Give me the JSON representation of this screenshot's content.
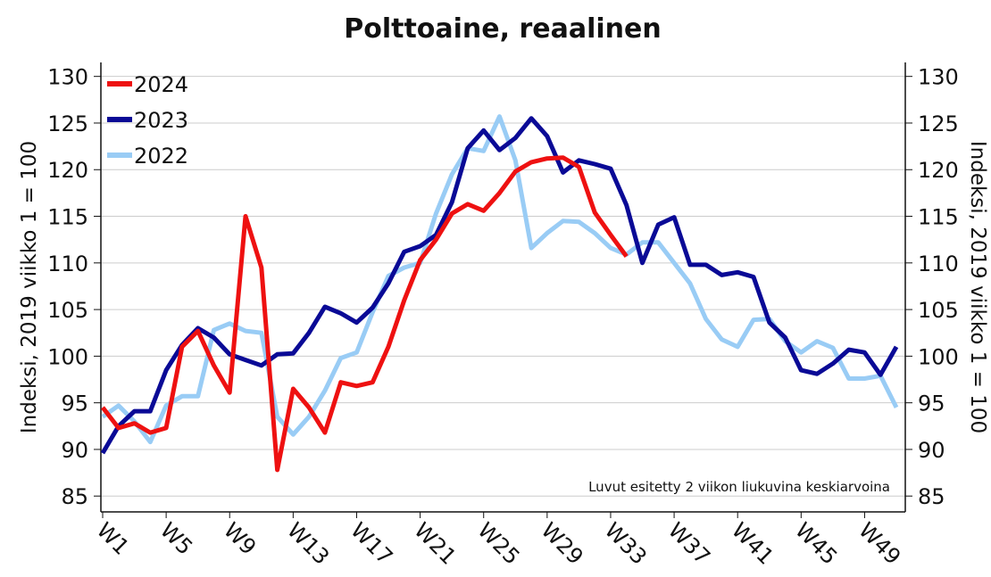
{
  "chart_data": {
    "type": "line",
    "title": "Polttoaine, reaalinen",
    "y_label": "Indeksi, 2019 viikko 1 = 100",
    "y2_label": "Indeksi, 2019 viikko 1 = 100",
    "annotation": "Luvut esitetty 2 viikon liukuvina keskiarvoina",
    "categories": [
      "W1",
      null,
      null,
      null,
      "W5",
      null,
      null,
      null,
      "W9",
      null,
      null,
      null,
      "W13",
      null,
      null,
      null,
      "W17",
      null,
      null,
      null,
      "W21",
      null,
      null,
      null,
      "W25",
      null,
      null,
      null,
      "W29",
      null,
      null,
      null,
      "W33",
      null,
      null,
      null,
      "W37",
      null,
      null,
      null,
      "W41",
      null,
      null,
      null,
      "W45",
      null,
      null,
      null,
      "W49",
      null,
      null
    ],
    "ylim": [
      83.3,
      131.5
    ],
    "yticks": [
      85,
      90,
      95,
      100,
      105,
      110,
      115,
      120,
      125,
      130
    ],
    "y2lim": [
      83.3,
      131.5
    ],
    "y2ticks": [
      85,
      90,
      95,
      100,
      105,
      110,
      115,
      120,
      125,
      130
    ],
    "grid": true,
    "legend": "upper left",
    "series": [
      {
        "name": "2024",
        "color": "#ee1111",
        "values": [
          94.5,
          92.3,
          92.8,
          91.8,
          92.3,
          101.0,
          102.7,
          99.0,
          96.1,
          115.0,
          109.5,
          87.8,
          96.5,
          94.5,
          91.8,
          97.2,
          96.8,
          97.2,
          101.0,
          106.0,
          110.3,
          112.5,
          115.3,
          116.3,
          115.6,
          117.5,
          119.8,
          120.8,
          121.2,
          121.3,
          120.3,
          115.4,
          113.0,
          110.7,
          null,
          null,
          null,
          null,
          null,
          null,
          null,
          null,
          null,
          null,
          null,
          null,
          null,
          null,
          null,
          null,
          null
        ]
      },
      {
        "name": "2023",
        "color": "#0a0a96",
        "values": [
          89.6,
          92.5,
          94.1,
          94.1,
          98.5,
          101.2,
          103.0,
          102.0,
          100.2,
          99.6,
          99.0,
          100.2,
          100.3,
          102.5,
          105.3,
          104.6,
          103.6,
          105.2,
          107.8,
          111.2,
          111.8,
          113.0,
          116.5,
          122.3,
          124.2,
          122.1,
          123.4,
          125.5,
          123.6,
          119.7,
          121.0,
          120.6,
          120.1,
          116.2,
          110.0,
          114.1,
          114.9,
          109.8,
          109.8,
          108.7,
          109.0,
          108.5,
          103.6,
          102.0,
          98.5,
          98.1,
          99.2,
          100.7,
          100.4,
          98.0,
          101.0
        ]
      },
      {
        "name": "2022",
        "color": "#99ccf5",
        "values": [
          93.5,
          94.7,
          93.0,
          90.8,
          94.7,
          95.7,
          95.7,
          102.8,
          103.5,
          102.7,
          102.5,
          93.5,
          91.6,
          93.5,
          96.3,
          99.8,
          100.4,
          104.7,
          108.6,
          109.5,
          110.0,
          115.3,
          119.5,
          122.3,
          122.0,
          125.7,
          121.0,
          111.6,
          113.2,
          114.5,
          114.4,
          113.2,
          111.6,
          110.9,
          112.2,
          112.2,
          110.0,
          107.8,
          104.0,
          101.8,
          101.0,
          103.9,
          104.0,
          101.6,
          100.4,
          101.6,
          100.9,
          97.6,
          97.6,
          97.9,
          94.5
        ]
      }
    ]
  }
}
